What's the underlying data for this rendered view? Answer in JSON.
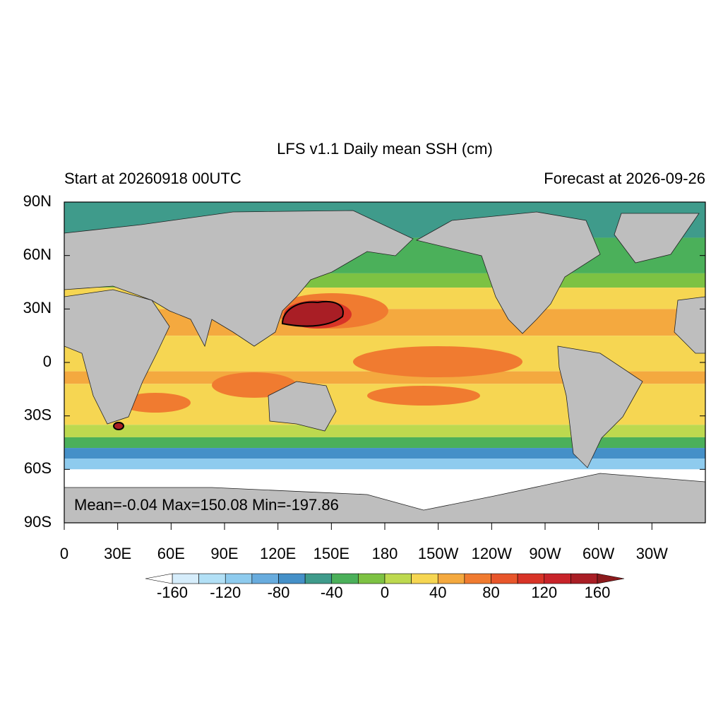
{
  "chart_data": {
    "type": "map",
    "title": "LFS v1.1 Daily mean SSH (cm)",
    "subtitle_left": "Start at 20260918 00UTC",
    "subtitle_right": "Forecast at 2026-09-26",
    "annotation": "Mean=-0.04  Max=150.08  Min=-197.86",
    "xlim": [
      0,
      360
    ],
    "ylim": [
      -90,
      90
    ],
    "xticks": [
      0,
      {
        "value": 30,
        "label": "30E"
      },
      {
        "value": 60,
        "label": "60E"
      },
      {
        "value": 90,
        "label": "90E"
      },
      {
        "value": 120,
        "label": "120E"
      },
      {
        "value": 150,
        "label": "150E"
      },
      180,
      {
        "value": 210,
        "label": "150W"
      },
      {
        "value": 240,
        "label": "120W"
      },
      {
        "value": 270,
        "label": "90W"
      },
      {
        "value": 300,
        "label": "60W"
      },
      {
        "value": 330,
        "label": "30W"
      }
    ],
    "yticks": [
      {
        "value": 90,
        "label": "90N"
      },
      {
        "value": 60,
        "label": "60N"
      },
      {
        "value": 30,
        "label": "30N"
      },
      0,
      {
        "value": -30,
        "label": "30S"
      },
      {
        "value": -60,
        "label": "60S"
      },
      {
        "value": -90,
        "label": "90S"
      }
    ],
    "colorbar": {
      "levels": [
        -160,
        -140,
        -120,
        -100,
        -80,
        -60,
        -40,
        -20,
        0,
        20,
        40,
        60,
        80,
        100,
        120,
        140,
        160
      ],
      "colors": [
        "#ffffff",
        "#d6edfb",
        "#b2e0f6",
        "#8ecbee",
        "#68acde",
        "#4590c8",
        "#3f9b8b",
        "#4bb05a",
        "#7dc243",
        "#bdd94f",
        "#f6d652",
        "#f4a93f",
        "#f07b30",
        "#e8562b",
        "#d83427",
        "#c8242a",
        "#a91e25",
        "#8b1a1c"
      ],
      "ticks": [
        -160,
        -120,
        -80,
        -40,
        0,
        40,
        80,
        120,
        160
      ]
    }
  }
}
